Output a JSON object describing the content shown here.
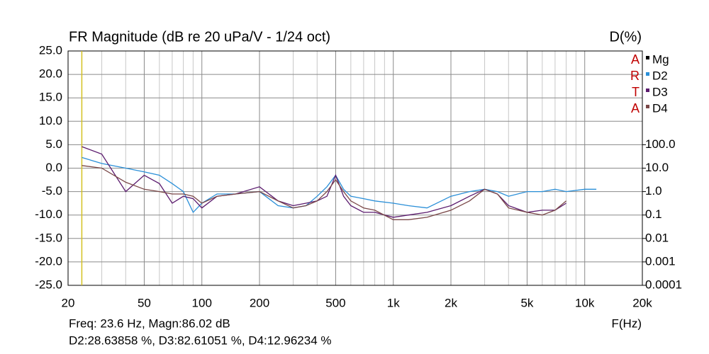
{
  "chart_data": {
    "type": "line",
    "title": "FR Magnitude (dB re 20 uPa/V - 1/24 oct)",
    "x_label": "F(Hz)",
    "y2_label": "D(%)",
    "logo": [
      "A",
      "R",
      "T",
      "A"
    ],
    "annotations": [
      "Freq: 23.6 Hz, Magn:86.02 dB",
      "D2:28.63858 %, D3:82.61051 %, D4:12.96234 %"
    ],
    "cursor_x": 23.6,
    "cursor_color": "#d4c020",
    "xlog": true,
    "y2log": true,
    "grid": true,
    "legend": "right",
    "xlim": [
      20,
      20000
    ],
    "xticks": [
      20,
      50,
      100,
      200,
      500,
      {
        "value": 1000,
        "label": "1k"
      },
      {
        "value": 2000,
        "label": "2k"
      },
      {
        "value": 5000,
        "label": "5k"
      },
      {
        "value": 10000,
        "label": "10k"
      },
      {
        "value": 20000,
        "label": "20k"
      }
    ],
    "xminor": [
      30,
      40,
      60,
      70,
      80,
      90,
      300,
      400,
      600,
      700,
      800,
      900,
      3000,
      4000,
      6000,
      7000,
      8000,
      9000
    ],
    "ylim": [
      -25,
      25
    ],
    "yticks": [
      {
        "value": 25,
        "label": "25.0"
      },
      {
        "value": 20,
        "label": "20.0"
      },
      {
        "value": 15,
        "label": "15.0"
      },
      {
        "value": 10,
        "label": "10.0"
      },
      {
        "value": 5,
        "label": "5.0"
      },
      {
        "value": 0,
        "label": "0.0"
      },
      {
        "value": -5,
        "label": "-5.0"
      },
      {
        "value": -10,
        "label": "-10.0"
      },
      {
        "value": -15,
        "label": "-15.0"
      },
      {
        "value": -20,
        "label": "-20.0"
      },
      {
        "value": -25,
        "label": "-25.0"
      }
    ],
    "y2lim": [
      0.0001,
      1000000
    ],
    "y2ticks": [
      {
        "value": 100,
        "label": "100.0"
      },
      {
        "value": 10,
        "label": "10.0"
      },
      {
        "value": 1,
        "label": "1.0"
      },
      0.1,
      0.01,
      0.001,
      0.0001
    ],
    "series": [
      {
        "name": "Mg",
        "color": "#000000"
      },
      {
        "name": "D2",
        "color": "#2a8fd8",
        "axis": "y2",
        "x": [
          23.6,
          30,
          40,
          50,
          60,
          70,
          80,
          90,
          100,
          120,
          150,
          200,
          250,
          300,
          350,
          400,
          450,
          500,
          550,
          600,
          700,
          800,
          1000,
          1200,
          1500,
          2000,
          2500,
          3000,
          3500,
          4000,
          5000,
          6000,
          7000,
          8000,
          10000,
          11500
        ],
        "values": [
          28.64,
          15.8,
          10,
          6.9,
          5.0,
          2.2,
          1.0,
          0.13,
          0.32,
          0.79,
          0.79,
          1.0,
          0.25,
          0.2,
          0.25,
          0.63,
          1.6,
          5.0,
          1.26,
          0.63,
          0.5,
          0.4,
          0.32,
          0.25,
          0.2,
          0.63,
          1.0,
          1.26,
          1.0,
          0.63,
          1.0,
          1.0,
          1.26,
          1.0,
          1.26,
          1.26
        ]
      },
      {
        "name": "D3",
        "color": "#5b1b6e",
        "axis": "y2",
        "x": [
          23.6,
          30,
          40,
          50,
          60,
          70,
          80,
          90,
          100,
          120,
          150,
          200,
          250,
          300,
          350,
          400,
          450,
          500,
          550,
          600,
          700,
          800,
          1000,
          1200,
          1500,
          2000,
          2500,
          3000,
          3500,
          4000,
          5000,
          6000,
          7000,
          8000
        ],
        "values": [
          82.61,
          39.8,
          1.0,
          5.0,
          2.2,
          0.32,
          0.63,
          0.5,
          0.2,
          0.63,
          0.79,
          1.6,
          0.4,
          0.25,
          0.32,
          0.4,
          0.63,
          5.0,
          0.63,
          0.25,
          0.13,
          0.13,
          0.08,
          0.1,
          0.13,
          0.25,
          0.63,
          1.26,
          0.79,
          0.25,
          0.13,
          0.16,
          0.16,
          0.32
        ]
      },
      {
        "name": "D4",
        "color": "#7a4848",
        "axis": "y2",
        "x": [
          23.6,
          30,
          40,
          50,
          60,
          70,
          80,
          90,
          100,
          120,
          150,
          200,
          250,
          300,
          350,
          400,
          450,
          500,
          550,
          600,
          700,
          800,
          1000,
          1200,
          1500,
          2000,
          2500,
          3000,
          3500,
          4000,
          5000,
          6000,
          7000,
          8000
        ],
        "values": [
          12.96,
          10,
          2.5,
          1.26,
          1.0,
          0.79,
          0.79,
          0.63,
          0.32,
          0.63,
          0.79,
          1.0,
          0.4,
          0.2,
          0.25,
          0.4,
          1.0,
          3.2,
          1.0,
          0.4,
          0.2,
          0.16,
          0.063,
          0.063,
          0.08,
          0.16,
          0.4,
          1.26,
          0.79,
          0.2,
          0.13,
          0.1,
          0.16,
          0.4
        ]
      }
    ]
  }
}
